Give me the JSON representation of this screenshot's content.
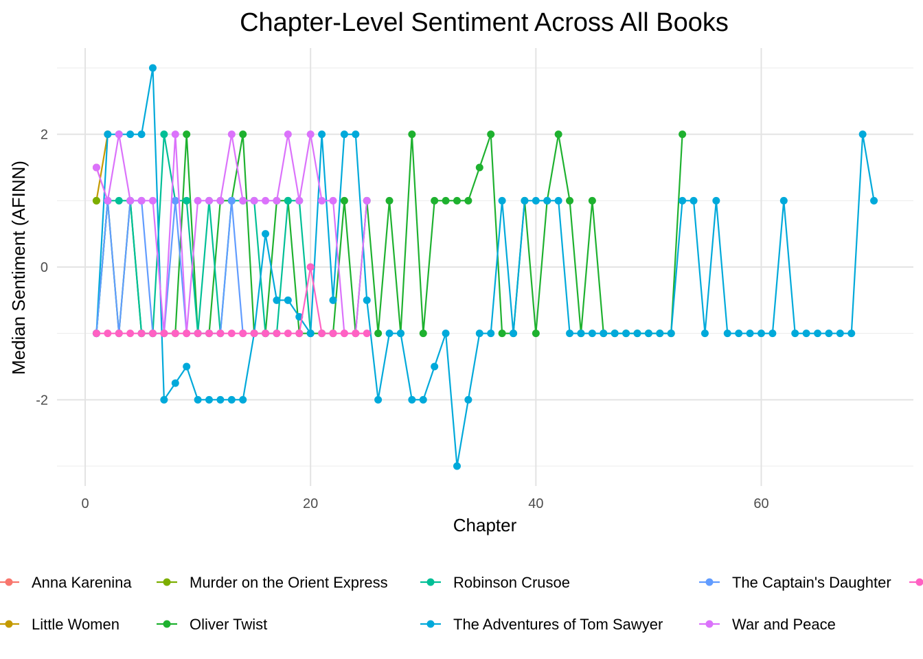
{
  "chart_data": {
    "type": "line",
    "title": "Chapter-Level Sentiment Across All Books",
    "xlabel": "Chapter",
    "ylabel": "Median Sentiment (AFINN)",
    "xlim": [
      -2.5,
      73.5
    ],
    "ylim": [
      -3.3,
      3.3
    ],
    "x_ticks": [
      0,
      20,
      40,
      60
    ],
    "y_ticks": [
      -2,
      0,
      2
    ],
    "grid": true,
    "legend_position": "bottom",
    "series": [
      {
        "name": "Anna Karenina",
        "color": "#F8766D",
        "x": [
          1,
          2
        ],
        "y": [
          1.5,
          1
        ]
      },
      {
        "name": "Little Women",
        "color": "#C49A00",
        "x": [
          1,
          2
        ],
        "y": [
          1,
          2
        ]
      },
      {
        "name": "Murder on the Orient Express",
        "color": "#7CAE00",
        "x": [
          1
        ],
        "y": [
          1
        ]
      },
      {
        "name": "Oliver Twist",
        "color": "#1EB12F",
        "x": [
          1,
          2,
          3,
          4,
          5,
          6,
          7,
          8,
          9,
          10,
          11,
          12,
          13,
          14,
          15,
          16,
          17,
          18,
          19,
          20,
          21,
          22,
          23,
          24,
          25,
          26,
          27,
          28,
          29,
          30,
          31,
          32,
          33,
          34,
          35,
          36,
          37,
          38,
          39,
          40,
          41,
          42,
          43,
          44,
          45,
          46,
          47,
          48,
          49,
          50,
          51,
          52,
          53
        ],
        "y": [
          -1,
          1,
          -1,
          1,
          -1,
          -1,
          -1,
          -1,
          2,
          -1,
          -1,
          1,
          1,
          2,
          -1,
          -1,
          1,
          1,
          -1,
          -1,
          -1,
          -1,
          1,
          -1,
          1,
          -1,
          1,
          -1,
          2,
          -1,
          1,
          1,
          1,
          1,
          1.5,
          2,
          -1,
          -1,
          1,
          -1,
          1,
          2,
          1,
          -1,
          1,
          -1,
          -1,
          -1,
          -1,
          -1,
          -1,
          -1,
          2
        ]
      },
      {
        "name": "Robinson Crusoe",
        "color": "#00BF96",
        "x": [
          1,
          2,
          3,
          4,
          5,
          6,
          7,
          8,
          9,
          10,
          11,
          12,
          13,
          14,
          15,
          16,
          17,
          18,
          19,
          20
        ],
        "y": [
          -1,
          1,
          1,
          1,
          -1,
          -1,
          2,
          1,
          1,
          -1,
          1,
          -1,
          1,
          1,
          1,
          -1,
          -1,
          1,
          1,
          -1
        ]
      },
      {
        "name": "The Adventures of Tom Sawyer",
        "color": "#00A9DA",
        "x": [
          1,
          2,
          3,
          4,
          5,
          6,
          7,
          8,
          9,
          10,
          11,
          12,
          13,
          14,
          15,
          16,
          17,
          18,
          19,
          20,
          21,
          22,
          23,
          24,
          25,
          26,
          27,
          28,
          29,
          30,
          31,
          32,
          33,
          34,
          35,
          36,
          37,
          38,
          39,
          40,
          41,
          42,
          43,
          44,
          45,
          46,
          47,
          48,
          49,
          50,
          51,
          52,
          53,
          54,
          55,
          56,
          57,
          58,
          59,
          60,
          61,
          62,
          63,
          64,
          65,
          66,
          67,
          68,
          69,
          70
        ],
        "y": [
          -1,
          2,
          2,
          2,
          2,
          3,
          -2,
          -1.75,
          -1.5,
          -2,
          -2,
          -2,
          -2,
          -2,
          -1,
          0.5,
          -0.5,
          -0.5,
          -0.75,
          -1,
          2,
          -0.5,
          2,
          2,
          -0.5,
          -2,
          -1,
          -1,
          -2,
          -2,
          -1.5,
          -1,
          -3,
          -2,
          -1,
          -1,
          1,
          -1,
          1,
          1,
          1,
          1,
          -1,
          -1,
          -1,
          -1,
          -1,
          -1,
          -1,
          -1,
          -1,
          -1,
          1,
          1,
          -1,
          1,
          -1,
          -1,
          -1,
          -1,
          -1,
          1,
          -1,
          -1,
          -1,
          -1,
          -1,
          -1,
          2,
          1
        ]
      },
      {
        "name": "The Captain's Daughter",
        "color": "#619CFF",
        "x": [
          1,
          2,
          3,
          4,
          5,
          6,
          7,
          8,
          9,
          10,
          11,
          12,
          13,
          14
        ],
        "y": [
          -1,
          1,
          -1,
          1,
          1,
          -1,
          -1,
          1,
          -1,
          -1,
          -1,
          -1,
          1,
          -1
        ]
      },
      {
        "name": "War and Peace",
        "color": "#DB72FB",
        "x": [
          1,
          2,
          3,
          4,
          5,
          6,
          7,
          8,
          9,
          10,
          11,
          12,
          13,
          14,
          15,
          16,
          17,
          18,
          19,
          20,
          21,
          22,
          23,
          24,
          25
        ],
        "y": [
          1.5,
          1,
          2,
          1,
          1,
          1,
          -1,
          2,
          -1,
          1,
          1,
          1,
          2,
          1,
          1,
          1,
          1,
          2,
          1,
          2,
          1,
          1,
          -1,
          -1,
          1
        ]
      },
      {
        "name": "",
        "color": "#FF61C3",
        "x": [
          1,
          2,
          3,
          4,
          5,
          6,
          7,
          8,
          9,
          10,
          11,
          12,
          13,
          14,
          15,
          16,
          17,
          18,
          19,
          20,
          21,
          22,
          23,
          24,
          25
        ],
        "y": [
          -1,
          -1,
          -1,
          -1,
          -1,
          -1,
          -1,
          -1,
          -1,
          -1,
          -1,
          -1,
          -1,
          -1,
          -1,
          -1,
          -1,
          -1,
          -1,
          0,
          -1,
          -1,
          -1,
          -1,
          -1
        ]
      }
    ],
    "legend": [
      "Anna Karenina",
      "Murder on the Orient Express",
      "Robinson Crusoe",
      "The Captain's Daughter",
      "",
      "Little Women",
      "Oliver Twist",
      "The Adventures of Tom Sawyer",
      "War and Peace"
    ]
  }
}
